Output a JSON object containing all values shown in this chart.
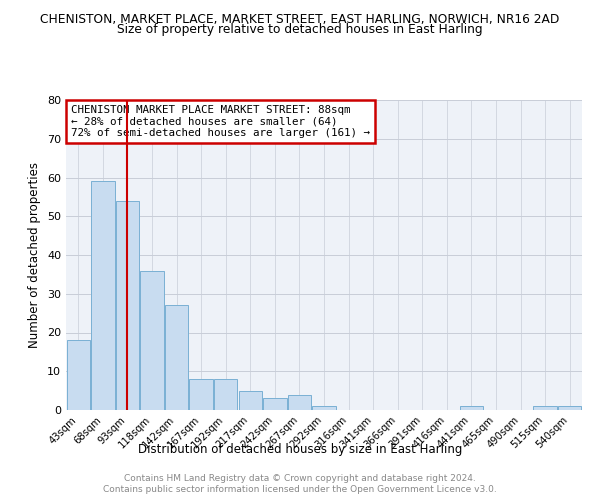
{
  "title_line1": "CHENISTON, MARKET PLACE, MARKET STREET, EAST HARLING, NORWICH, NR16 2AD",
  "title_line2": "Size of property relative to detached houses in East Harling",
  "xlabel": "Distribution of detached houses by size in East Harling",
  "ylabel": "Number of detached properties",
  "bar_labels": [
    "43sqm",
    "68sqm",
    "93sqm",
    "118sqm",
    "142sqm",
    "167sqm",
    "192sqm",
    "217sqm",
    "242sqm",
    "267sqm",
    "292sqm",
    "316sqm",
    "341sqm",
    "366sqm",
    "391sqm",
    "416sqm",
    "441sqm",
    "465sqm",
    "490sqm",
    "515sqm",
    "540sqm"
  ],
  "bar_heights": [
    18,
    59,
    54,
    36,
    27,
    8,
    8,
    5,
    3,
    4,
    1,
    0,
    0,
    0,
    0,
    0,
    1,
    0,
    0,
    1,
    1
  ],
  "bar_color": "#c8dcf0",
  "bar_edge_color": "#7ab0d4",
  "vline_x_index": 2,
  "vline_color": "#cc0000",
  "ylim": [
    0,
    80
  ],
  "yticks": [
    0,
    10,
    20,
    30,
    40,
    50,
    60,
    70,
    80
  ],
  "annotation_title": "CHENISTON MARKET PLACE MARKET STREET: 88sqm",
  "annotation_line1": "← 28% of detached houses are smaller (64)",
  "annotation_line2": "72% of semi-detached houses are larger (161) →",
  "footer_line1": "Contains HM Land Registry data © Crown copyright and database right 2024.",
  "footer_line2": "Contains public sector information licensed under the Open Government Licence v3.0.",
  "background_color": "#ffffff",
  "plot_bg_color": "#eef2f8",
  "grid_color": "#c8cdd8"
}
